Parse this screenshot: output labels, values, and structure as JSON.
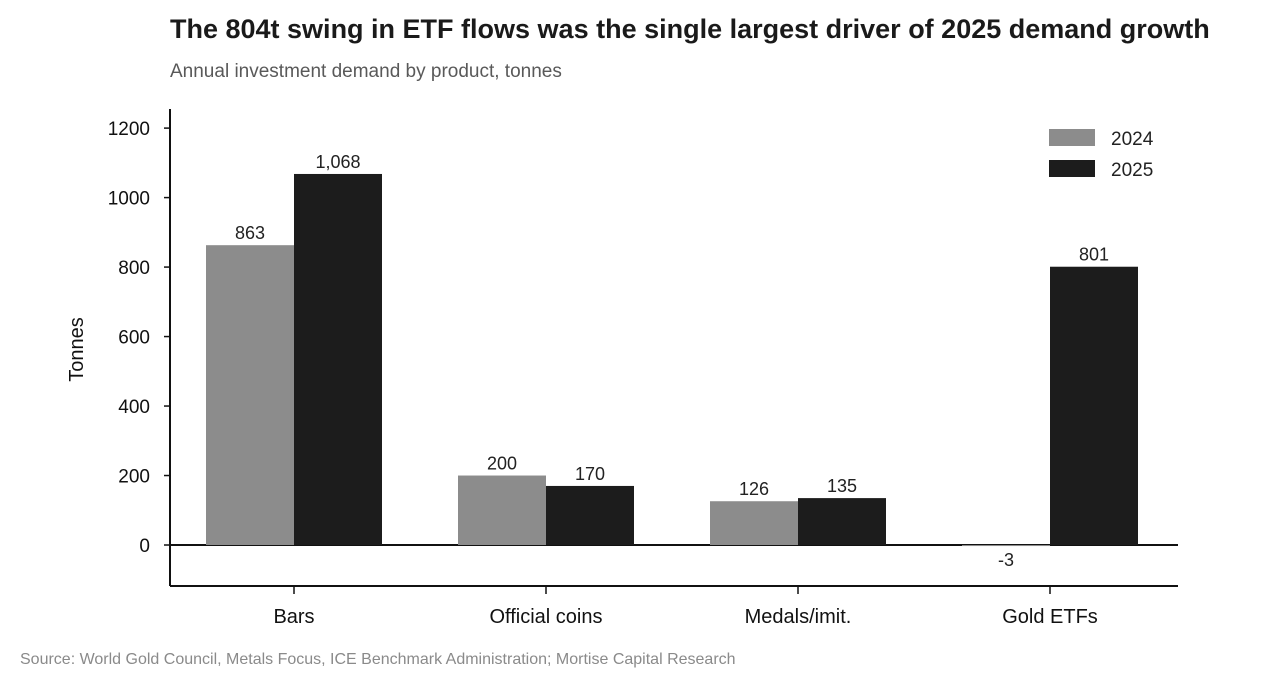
{
  "header": {
    "title": "The 804t swing in ETF flows was the single largest driver of 2025 demand growth",
    "subtitle": "Annual investment demand by product, tonnes"
  },
  "footer": {
    "source": "Source: World Gold Council, Metals Focus, ICE Benchmark Administration; Mortise Capital Research"
  },
  "chart_data": {
    "type": "bar",
    "title": "The 804t swing in ETF flows was the single largest driver of 2025 demand growth",
    "subtitle": "Annual investment demand by product, tonnes",
    "xlabel": "",
    "ylabel": "Tonnes",
    "categories": [
      "Bars",
      "Official coins",
      "Medals/imit.",
      "Gold ETFs"
    ],
    "series": [
      {
        "name": "2024",
        "values": [
          863,
          200,
          126,
          -3
        ],
        "labels": [
          "863",
          "200",
          "126",
          "-3"
        ],
        "color": "#8c8c8c"
      },
      {
        "name": "2025",
        "values": [
          1068,
          170,
          135,
          801
        ],
        "labels": [
          "1,068",
          "170",
          "135",
          "801"
        ],
        "color": "#1c1c1c"
      }
    ],
    "ylim": [
      -118,
      1255
    ],
    "yticks": [
      0,
      200,
      400,
      600,
      800,
      1000,
      1200
    ],
    "grid": false,
    "legend": "top-right"
  }
}
